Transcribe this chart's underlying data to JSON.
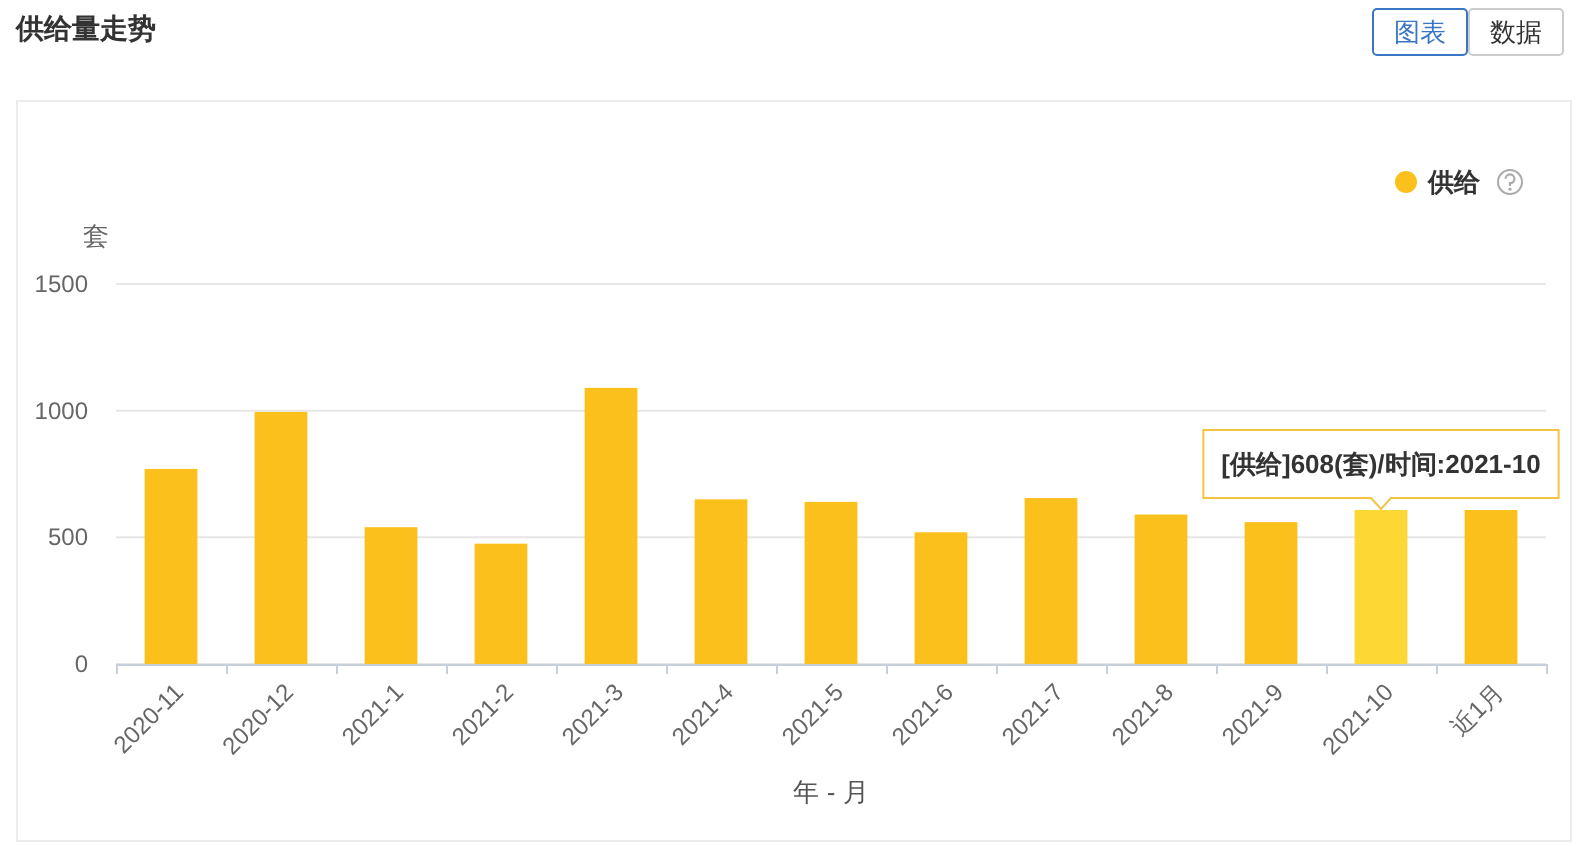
{
  "chart_data": {
    "type": "bar",
    "title": "供给量走势",
    "xlabel": "年 - 月",
    "ylabel": "套",
    "categories": [
      "2020-11",
      "2020-12",
      "2021-1",
      "2021-2",
      "2021-3",
      "2021-4",
      "2021-5",
      "2021-6",
      "2021-7",
      "2021-8",
      "2021-9",
      "2021-10",
      "近1月"
    ],
    "series": [
      {
        "name": "供给",
        "color": "#fcc01c",
        "colors": [
          "#fcc01c",
          "#fcc01c",
          "#fcc01c",
          "#fcc01c",
          "#fcc01c",
          "#fcc01c",
          "#fcc01c",
          "#fcc01c",
          "#fcc01c",
          "#fcc01c",
          "#fcc01c",
          "#fdd835",
          "#fcc01c"
        ],
        "values": [
          770,
          995,
          540,
          475,
          1090,
          650,
          640,
          520,
          655,
          590,
          560,
          608,
          608
        ]
      }
    ],
    "ylim": [
      0,
      1500
    ],
    "yticks": [
      0,
      500,
      1000,
      1500
    ],
    "grid": "y",
    "legend": "top right",
    "annotations": [
      {
        "text": "[供给]608(套)/时间:2021-10",
        "x": "2021-10",
        "y": 608
      },
      "图表",
      "数据"
    ]
  }
}
